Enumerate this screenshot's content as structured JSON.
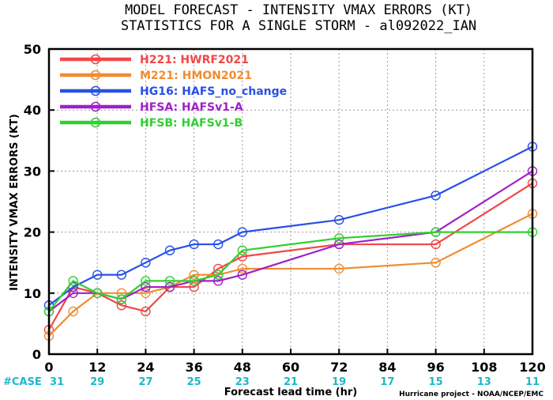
{
  "chart_data": {
    "type": "line",
    "title_line1": "MODEL FORECAST - INTENSITY VMAX ERRORS (KT)",
    "title_line2": "STATISTICS FOR A SINGLE STORM - al092022_IAN",
    "xlabel": "Forecast lead time (hr)",
    "ylabel": "INTENSITY VMAX ERRORS (KT)",
    "xlim": [
      0,
      120
    ],
    "ylim": [
      0,
      50
    ],
    "xticks": [
      0,
      12,
      24,
      36,
      48,
      60,
      72,
      84,
      96,
      108,
      120
    ],
    "yticks": [
      0,
      10,
      20,
      30,
      40,
      50
    ],
    "grid": true,
    "legend_position": "top-left",
    "case_label": "#CASE",
    "case_counts": [
      31,
      29,
      27,
      25,
      23,
      21,
      19,
      17,
      15,
      13,
      11
    ],
    "credit": "Hurricane project - NOAA/NCEP/EMC",
    "series": [
      {
        "name": "H221:  HWRF2021",
        "color": "#f04848",
        "x": [
          0,
          6,
          12,
          18,
          24,
          30,
          36,
          42,
          48,
          72,
          96,
          120
        ],
        "y": [
          4,
          11,
          10,
          8,
          7,
          11,
          11,
          14,
          16,
          18,
          18,
          28
        ]
      },
      {
        "name": "M221:  HMON2021",
        "color": "#f08c30",
        "x": [
          0,
          6,
          12,
          18,
          24,
          30,
          36,
          42,
          48,
          72,
          96,
          120
        ],
        "y": [
          3,
          7,
          10,
          10,
          10,
          11,
          13,
          13,
          14,
          14,
          15,
          23
        ]
      },
      {
        "name": "HG16:  HAFS_no_change",
        "color": "#2850e8",
        "x": [
          0,
          6,
          12,
          18,
          24,
          30,
          36,
          42,
          48,
          72,
          96,
          120
        ],
        "y": [
          8,
          11,
          13,
          13,
          15,
          17,
          18,
          18,
          20,
          22,
          26,
          34
        ]
      },
      {
        "name": "HFSA:  HAFSv1-A",
        "color": "#a020c8",
        "x": [
          0,
          6,
          12,
          18,
          24,
          30,
          36,
          42,
          48,
          72,
          96,
          120
        ],
        "y": [
          7,
          10,
          10,
          9,
          11,
          11,
          12,
          12,
          13,
          18,
          20,
          30
        ]
      },
      {
        "name": "HFSB:  HAFSv1-B",
        "color": "#30d030",
        "x": [
          0,
          6,
          12,
          18,
          24,
          30,
          36,
          42,
          48,
          72,
          96,
          120
        ],
        "y": [
          7,
          12,
          10,
          9,
          12,
          12,
          12,
          13,
          17,
          19,
          20,
          20
        ]
      }
    ]
  }
}
